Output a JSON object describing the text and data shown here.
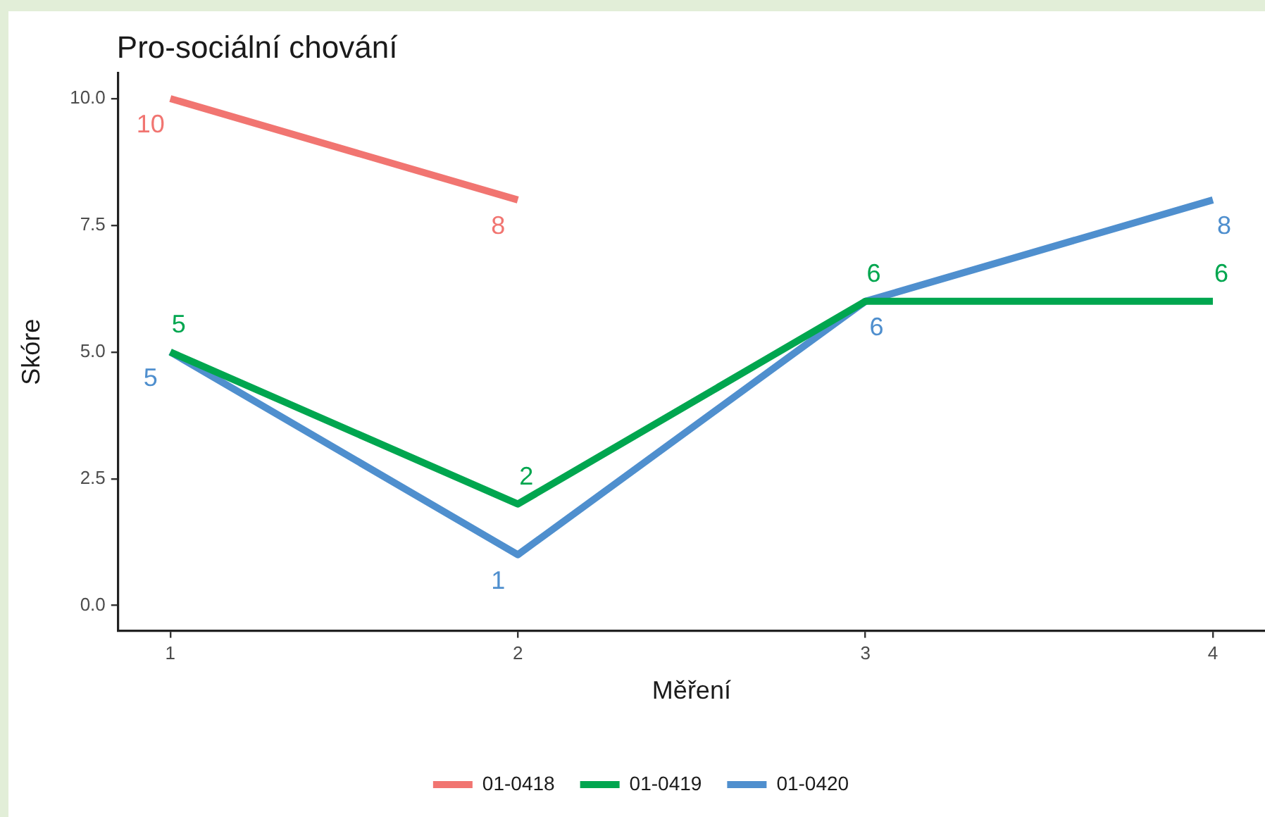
{
  "chart_data": {
    "type": "line",
    "title": "Pro-sociální chování",
    "xlabel": "Měření",
    "ylabel": "Skóre",
    "x": [
      1,
      2,
      3,
      4
    ],
    "series": [
      {
        "name": "01-0418",
        "color": "#f17571",
        "x": [
          1,
          2
        ],
        "values": [
          10,
          8
        ]
      },
      {
        "name": "01-0419",
        "color": "#00a64f",
        "values": [
          5,
          2,
          6,
          6
        ]
      },
      {
        "name": "01-0420",
        "color": "#4f8fce",
        "values": [
          5,
          1,
          6,
          8
        ]
      }
    ],
    "xlim": [
      0.85,
      4.15
    ],
    "ylim": [
      -0.5,
      10.5
    ],
    "xticks": [
      1,
      2,
      3,
      4
    ],
    "yticks": [
      {
        "value": 0,
        "label": "0.0"
      },
      {
        "value": 2.5,
        "label": "2.5"
      },
      {
        "value": 5,
        "label": "5.0"
      },
      {
        "value": 7.5,
        "label": "7.5"
      },
      {
        "value": 10,
        "label": "10.0"
      }
    ],
    "data_labels": true,
    "legend": "bottom"
  }
}
